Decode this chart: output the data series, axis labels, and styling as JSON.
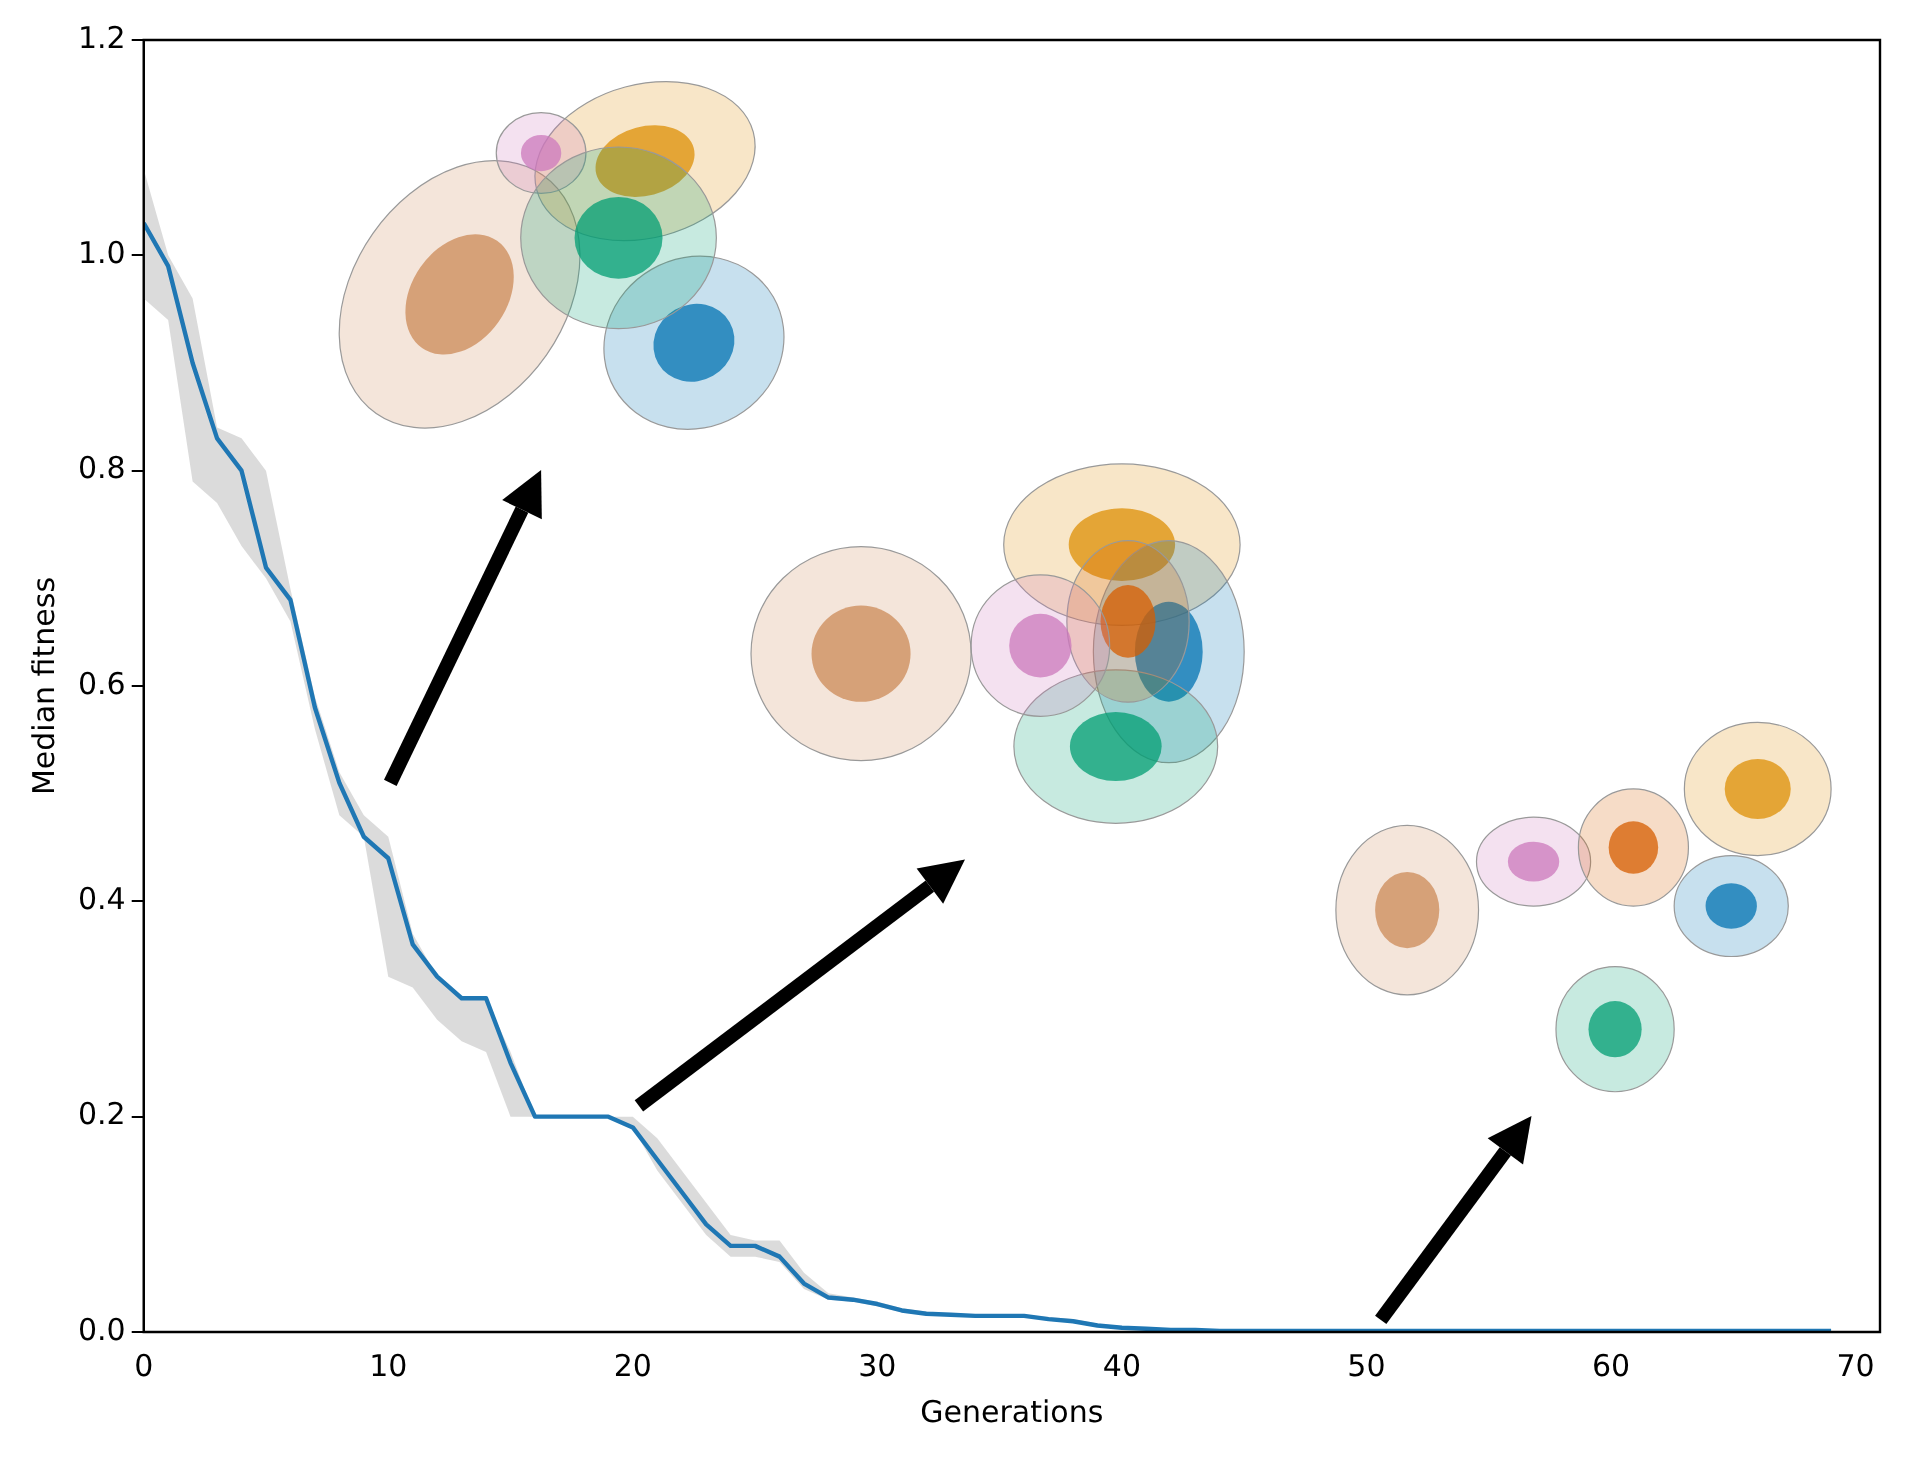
{
  "chart_data": {
    "type": "line",
    "xlabel": "Generations",
    "ylabel": "Median fitness",
    "x": [
      0,
      1,
      2,
      3,
      4,
      5,
      6,
      7,
      8,
      9,
      10,
      11,
      12,
      13,
      14,
      15,
      16,
      17,
      18,
      19,
      20,
      21,
      22,
      23,
      24,
      25,
      26,
      27,
      28,
      29,
      30,
      31,
      32,
      33,
      34,
      35,
      36,
      37,
      38,
      39,
      40,
      41,
      42,
      43,
      44,
      45,
      46,
      47,
      48,
      49,
      50,
      51,
      52,
      53,
      54,
      55,
      56,
      57,
      58,
      59,
      60,
      61,
      62,
      63,
      64,
      65,
      66,
      67,
      68,
      69
    ],
    "series": [
      {
        "color": "#1f77b4",
        "values": [
          1.03,
          0.99,
          0.9,
          0.83,
          0.8,
          0.71,
          0.68,
          0.58,
          0.51,
          0.46,
          0.44,
          0.36,
          0.33,
          0.31,
          0.31,
          0.25,
          0.2,
          0.2,
          0.2,
          0.2,
          0.19,
          0.16,
          0.13,
          0.1,
          0.08,
          0.08,
          0.07,
          0.045,
          0.032,
          0.03,
          0.026,
          0.02,
          0.017,
          0.016,
          0.015,
          0.015,
          0.015,
          0.012,
          0.01,
          0.006,
          0.004,
          0.003,
          0.002,
          0.002,
          0.001,
          0.001,
          0.001,
          0.001,
          0.001,
          0.001,
          0.001,
          0.001,
          0.001,
          0.001,
          0.001,
          0.001,
          0.001,
          0.001,
          0.001,
          0.001,
          0.001,
          0.001,
          0.001,
          0.001,
          0.001,
          0.001,
          0.001,
          0.001,
          0.001,
          0.001
        ],
        "lower": [
          0.96,
          0.94,
          0.79,
          0.77,
          0.73,
          0.7,
          0.66,
          0.56,
          0.48,
          0.46,
          0.33,
          0.32,
          0.29,
          0.27,
          0.26,
          0.2,
          0.2,
          0.2,
          0.2,
          0.2,
          0.19,
          0.15,
          0.12,
          0.09,
          0.07,
          0.07,
          0.065,
          0.04,
          0.03,
          0.028,
          0.024,
          0.018,
          0.016,
          0.015,
          0.014,
          0.014,
          0.014,
          0.011,
          0.009,
          0.005,
          0.003,
          0.002,
          0.001,
          0.001,
          0.001,
          0.001,
          0.001,
          0.001,
          0.001,
          0.001,
          0.001,
          0.001,
          0.001,
          0.001,
          0.001,
          0.001,
          0.001,
          0.001,
          0.001,
          0.001,
          0.001,
          0.001,
          0.001,
          0.001,
          0.001,
          0.001,
          0.001,
          0.001,
          0.001,
          0.001
        ],
        "upper": [
          1.08,
          1.0,
          0.96,
          0.84,
          0.83,
          0.8,
          0.69,
          0.59,
          0.52,
          0.48,
          0.46,
          0.37,
          0.33,
          0.31,
          0.31,
          0.26,
          0.2,
          0.2,
          0.2,
          0.2,
          0.2,
          0.18,
          0.15,
          0.12,
          0.09,
          0.085,
          0.085,
          0.055,
          0.036,
          0.032,
          0.028,
          0.022,
          0.019,
          0.017,
          0.016,
          0.016,
          0.016,
          0.014,
          0.012,
          0.008,
          0.005,
          0.004,
          0.003,
          0.002,
          0.002,
          0.001,
          0.001,
          0.001,
          0.001,
          0.001,
          0.001,
          0.001,
          0.001,
          0.001,
          0.001,
          0.001,
          0.001,
          0.001,
          0.001,
          0.001,
          0.001,
          0.001,
          0.001,
          0.001,
          0.001,
          0.001,
          0.001,
          0.001,
          0.001,
          0.001
        ]
      }
    ],
    "xlim": [
      0,
      71
    ],
    "xticks": [
      0,
      10,
      20,
      30,
      40,
      50,
      60,
      70
    ],
    "ylim": [
      0,
      1.2
    ],
    "yticks": [
      {
        "value": 0,
        "label": "0.0"
      },
      {
        "value": 0.2,
        "label": "0.2"
      },
      {
        "value": 0.4,
        "label": "0.4"
      },
      {
        "value": 0.6,
        "label": "0.6"
      },
      {
        "value": 0.8,
        "label": "0.8"
      },
      {
        "value": 1,
        "label": "1.0"
      },
      {
        "value": 1.2,
        "label": "1.2"
      }
    ],
    "grid": false,
    "legend": false,
    "marker": "none",
    "line_style": "solid"
  }
}
